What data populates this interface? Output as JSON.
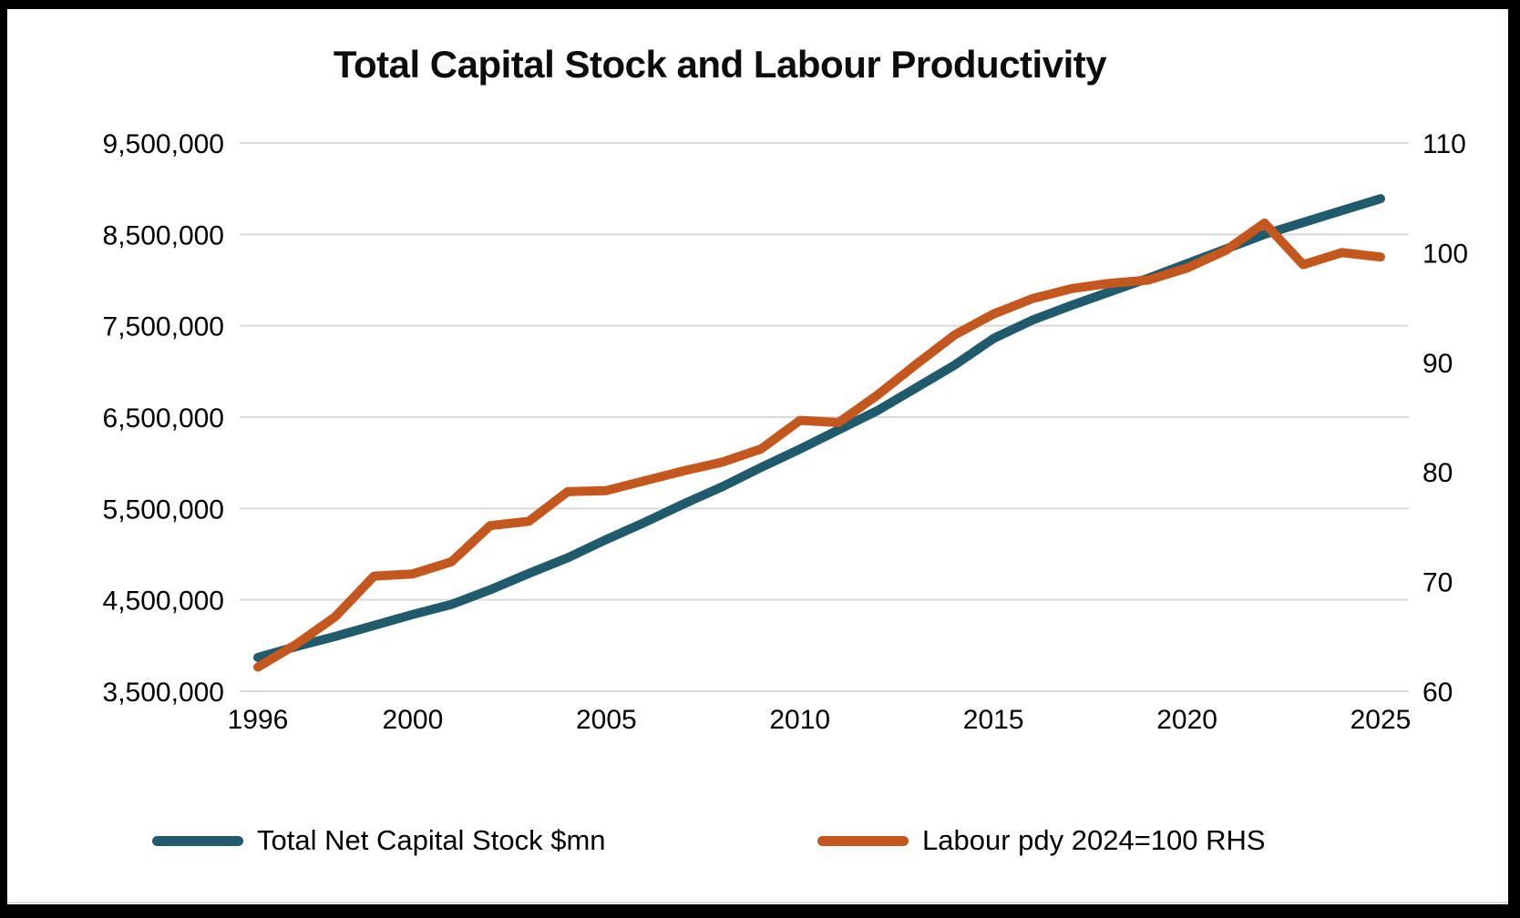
{
  "frame": {
    "color": "#000000",
    "background": "#ffffff"
  },
  "chart_data": {
    "type": "line",
    "title": "Total Capital Stock and Labour Productivity",
    "x": [
      1996,
      1997,
      1998,
      1999,
      2000,
      2001,
      2002,
      2003,
      2004,
      2005,
      2006,
      2007,
      2008,
      2009,
      2010,
      2011,
      2012,
      2013,
      2014,
      2015,
      2016,
      2017,
      2018,
      2019,
      2020,
      2021,
      2022,
      2023,
      2024,
      2025
    ],
    "x_tick_years": [
      1996,
      2000,
      2005,
      2010,
      2015,
      2020,
      2025
    ],
    "x_tick_labels": [
      "1996",
      "2000",
      "2005",
      "2010",
      "2015",
      "2020",
      "2025"
    ],
    "series": [
      {
        "name": "Total Net Capital Stock $mn",
        "axis": "left",
        "color": "#1F5A6D",
        "values": [
          3870000,
          3990000,
          4100000,
          4220000,
          4340000,
          4450000,
          4610000,
          4790000,
          4960000,
          5160000,
          5350000,
          5550000,
          5740000,
          5950000,
          6150000,
          6360000,
          6570000,
          6820000,
          7070000,
          7360000,
          7560000,
          7720000,
          7870000,
          8020000,
          8180000,
          8340000,
          8500000,
          8630000,
          8760000,
          8890000
        ]
      },
      {
        "name": "Labour pdy 2024=100 RHS",
        "axis": "right",
        "color": "#C4571E",
        "values": [
          62.2,
          64.3,
          66.8,
          70.5,
          70.7,
          71.8,
          75.1,
          75.5,
          78.2,
          78.3,
          79.2,
          80.1,
          80.9,
          82.1,
          84.7,
          84.5,
          87.0,
          89.8,
          92.5,
          94.4,
          95.8,
          96.7,
          97.2,
          97.5,
          98.6,
          100.2,
          102.7,
          98.9,
          100.0,
          99.6
        ]
      }
    ],
    "left_axis": {
      "min": 3500000,
      "max": 9500000,
      "tick_step": 1000000,
      "tick_labels": [
        "9,500,000",
        "8,500,000",
        "7,500,000",
        "6,500,000",
        "5,500,000",
        "4,500,000",
        "3,500,000"
      ]
    },
    "right_axis": {
      "min": 60,
      "max": 110,
      "tick_step": 10,
      "tick_labels": [
        "110",
        "100",
        "90",
        "80",
        "70",
        "60"
      ]
    },
    "grid": "horizontal",
    "gridline_color": "#D9D9D9",
    "line_width": 10,
    "legend_position": "bottom"
  }
}
